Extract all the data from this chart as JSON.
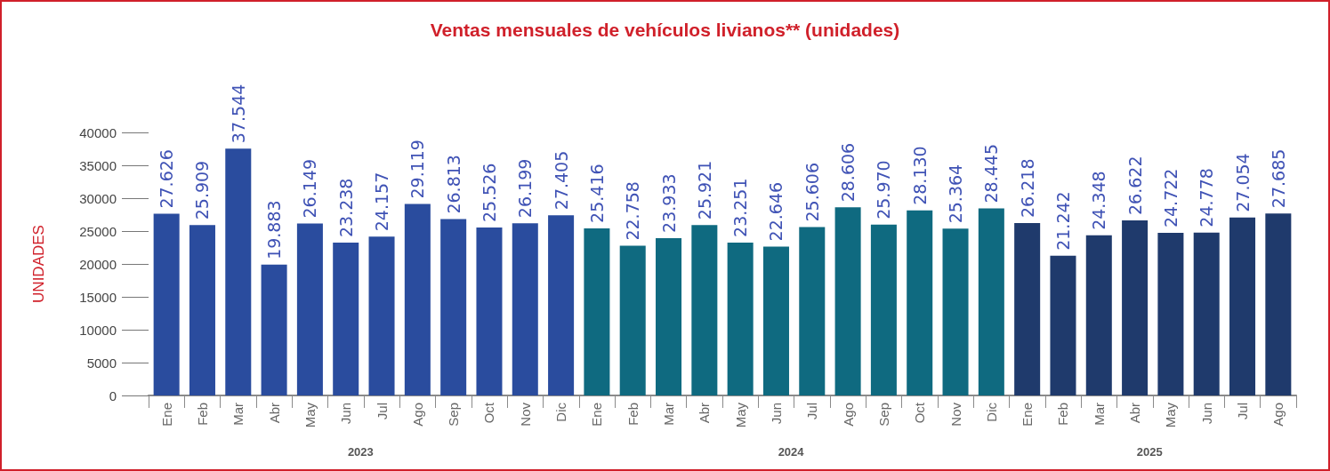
{
  "chart_data": {
    "type": "bar",
    "title": "Ventas mensuales de vehículos livianos** (unidades)",
    "ylabel": "UNIDADES",
    "categories": [
      "Ene",
      "Feb",
      "Mar",
      "Abr",
      "May",
      "Jun",
      "Jul",
      "Ago",
      "Sep",
      "Oct",
      "Nov",
      "Dic",
      "Ene",
      "Feb",
      "Mar",
      "Abr",
      "May",
      "Jun",
      "Jul",
      "Ago",
      "Sep",
      "Oct",
      "Nov",
      "Dic",
      "Ene",
      "Feb",
      "Mar",
      "Abr",
      "May",
      "Jun",
      "Jul",
      "Ago"
    ],
    "values": [
      27626,
      25909,
      37544,
      19883,
      26149,
      23238,
      24157,
      29119,
      26813,
      25526,
      26199,
      27405,
      25416,
      22758,
      23933,
      25921,
      23251,
      22646,
      25606,
      28606,
      25970,
      28130,
      25364,
      28445,
      26218,
      21242,
      24348,
      26622,
      24722,
      24778,
      27054,
      27685
    ],
    "value_labels": [
      "27.626",
      "25.909",
      "37.544",
      "19.883",
      "26.149",
      "23.238",
      "24.157",
      "29.119",
      "26.813",
      "25.526",
      "26.199",
      "27.405",
      "25.416",
      "22.758",
      "23.933",
      "25.921",
      "23.251",
      "22.646",
      "25.606",
      "28.606",
      "25.970",
      "28.130",
      "25.364",
      "28.445",
      "26.218",
      "21.242",
      "24.348",
      "26.622",
      "24.722",
      "24.778",
      "27.054",
      "27.685"
    ],
    "colors": [
      "#2a4c9e",
      "#2a4c9e",
      "#2a4c9e",
      "#2a4c9e",
      "#2a4c9e",
      "#2a4c9e",
      "#2a4c9e",
      "#2a4c9e",
      "#2a4c9e",
      "#2a4c9e",
      "#2a4c9e",
      "#2a4c9e",
      "#0f6a80",
      "#0f6a80",
      "#0f6a80",
      "#0f6a80",
      "#0f6a80",
      "#0f6a80",
      "#0f6a80",
      "#0f6a80",
      "#0f6a80",
      "#0f6a80",
      "#0f6a80",
      "#0f6a80",
      "#1f3a6c",
      "#1f3a6c",
      "#1f3a6c",
      "#1f3a6c",
      "#1f3a6c",
      "#1f3a6c",
      "#1f3a6c",
      "#1f3a6c"
    ],
    "annotations": [
      "2023",
      "2024",
      "2025"
    ],
    "ylim": [
      0,
      40000
    ],
    "yticks": [
      0,
      5000,
      10000,
      15000,
      20000,
      25000,
      30000,
      35000,
      40000
    ],
    "grid": false
  }
}
